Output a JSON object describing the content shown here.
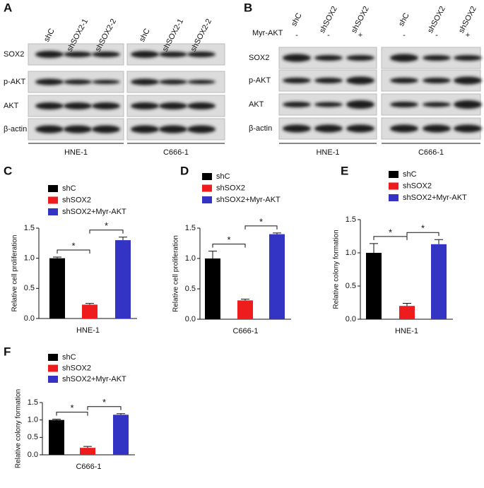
{
  "panel_labels": [
    "A",
    "B",
    "C",
    "D",
    "E",
    "F"
  ],
  "blots": [
    {
      "columns_left": [
        "shC",
        "shSOX2-1",
        "shSOX2-2"
      ],
      "columns_right": [
        "shC",
        "shSOX2-1",
        "shSOX2-2"
      ],
      "rows": [
        "SOX2",
        "p-AKT",
        "AKT",
        "β-actin"
      ],
      "cell_lines": [
        "HNE-1",
        "C666-1"
      ]
    },
    {
      "columns_left": [
        "shC",
        "shSOX2",
        "shSOX2"
      ],
      "columns_right": [
        "shC",
        "shSOX2",
        "shSOX2"
      ],
      "treatment_label": "Myr-AKT",
      "treatment_left": [
        "-",
        "-",
        "+"
      ],
      "treatment_right": [
        "-",
        "-",
        "+"
      ],
      "rows": [
        "SOX2",
        "p-AKT",
        "AKT",
        "β-actin"
      ],
      "cell_lines": [
        "HNE-1",
        "C666-1"
      ]
    }
  ],
  "chart_data": [
    {
      "type": "bar",
      "ylabel": "Relative cell proliferation",
      "xlabel": "HNE-1",
      "series": [
        {
          "name": "shC",
          "color": "#000000",
          "values": [
            1.0
          ],
          "errors": [
            0.02
          ]
        },
        {
          "name": "shSOX2",
          "color": "#ee1c1c",
          "values": [
            0.23
          ],
          "errors": [
            0.02
          ]
        },
        {
          "name": "shSOX2+Myr-AKT",
          "color": "#3434c4",
          "values": [
            1.3
          ],
          "errors": [
            0.05
          ]
        }
      ],
      "ylim": [
        0,
        1.5
      ],
      "yticks": [
        {
          "value": 0,
          "label": "0.0"
        },
        0.5,
        {
          "value": 1,
          "label": "1.0"
        },
        1.5
      ],
      "annotations": [
        "*",
        "*"
      ]
    },
    {
      "type": "bar",
      "ylabel": "Relative cell proliferation",
      "xlabel": "C666-1",
      "series": [
        {
          "name": "shC",
          "color": "#000000",
          "values": [
            1.0
          ],
          "errors": [
            0.12
          ]
        },
        {
          "name": "shSOX2",
          "color": "#ee1c1c",
          "values": [
            0.31
          ],
          "errors": [
            0.02
          ]
        },
        {
          "name": "shSOX2+Myr-AKT",
          "color": "#3434c4",
          "values": [
            1.4
          ],
          "errors": [
            0.02
          ]
        }
      ],
      "ylim": [
        0,
        1.5
      ],
      "yticks": [
        {
          "value": 0,
          "label": "0.0"
        },
        0.5,
        {
          "value": 1,
          "label": "1.0"
        },
        1.5
      ],
      "annotations": [
        "*",
        "*"
      ]
    },
    {
      "type": "bar",
      "ylabel": "Relative colony formation",
      "xlabel": "HNE-1",
      "series": [
        {
          "name": "shC",
          "color": "#000000",
          "values": [
            1.0
          ],
          "errors": [
            0.14
          ]
        },
        {
          "name": "shSOX2",
          "color": "#ee1c1c",
          "values": [
            0.2
          ],
          "errors": [
            0.04
          ]
        },
        {
          "name": "shSOX2+Myr-AKT",
          "color": "#3434c4",
          "values": [
            1.13
          ],
          "errors": [
            0.07
          ]
        }
      ],
      "ylim": [
        0,
        1.5
      ],
      "yticks": [
        {
          "value": 0,
          "label": "0.0"
        },
        0.5,
        {
          "value": 1,
          "label": "1.0"
        },
        1.5
      ],
      "annotations": [
        "*",
        "*"
      ]
    },
    {
      "type": "bar",
      "ylabel": "Relative colony formation",
      "xlabel": "C666-1",
      "series": [
        {
          "name": "shC",
          "color": "#000000",
          "values": [
            1.0
          ],
          "errors": [
            0.02
          ]
        },
        {
          "name": "shSOX2",
          "color": "#ee1c1c",
          "values": [
            0.2
          ],
          "errors": [
            0.04
          ]
        },
        {
          "name": "shSOX2+Myr-AKT",
          "color": "#3434c4",
          "values": [
            1.15
          ],
          "errors": [
            0.03
          ]
        }
      ],
      "ylim": [
        0,
        1.5
      ],
      "yticks": [
        {
          "value": 0,
          "label": "0.0"
        },
        0.5,
        {
          "value": 1,
          "label": "1.0"
        },
        1.5
      ],
      "annotations": [
        "*",
        "*"
      ]
    }
  ]
}
